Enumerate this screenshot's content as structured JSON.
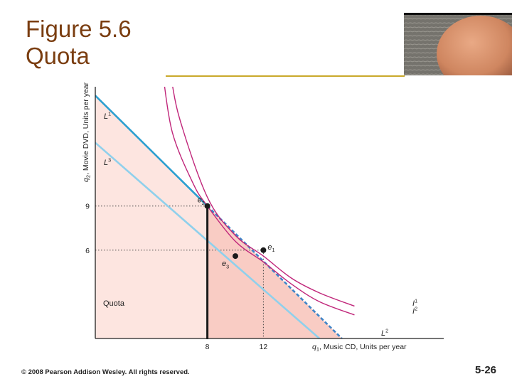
{
  "slide": {
    "title_line1": "Figure 5.6",
    "title_line2": "Quota",
    "footer": "© 2008 Pearson Addison Wesley. All rights reserved.",
    "page_number": "5-26"
  },
  "colors": {
    "title": "#7a3d10",
    "rule": "#c9a92b",
    "indifference": "#c0267a",
    "L1": "#2b9fd0",
    "L3": "#8fd0ec",
    "L2": "#3f85c8",
    "quota_fill": "#f9ccc4",
    "quota_line": "#1a1a1a"
  },
  "chart_data": {
    "type": "line",
    "title": "",
    "xlabel": "q1, Music CD, Units per year",
    "ylabel": "q2, Movie DVD, Units per year",
    "xlim": [
      0,
      20
    ],
    "ylim": [
      0,
      15.3
    ],
    "x_ticks": [
      {
        "value": 8,
        "label": "8"
      },
      {
        "value": 12,
        "label": "12"
      }
    ],
    "y_ticks": [
      {
        "value": 9,
        "label": "9"
      },
      {
        "value": 6,
        "label": "6"
      }
    ],
    "series": [
      {
        "name": "L1",
        "style": "solid",
        "points": [
          [
            0,
            16.5
          ],
          [
            8,
            9
          ]
        ]
      },
      {
        "name": "L2",
        "style": "dashed",
        "points": [
          [
            8,
            9
          ],
          [
            17.6,
            0
          ]
        ]
      },
      {
        "name": "L3",
        "style": "solid",
        "points": [
          [
            0,
            13.3
          ],
          [
            16,
            0
          ]
        ]
      },
      {
        "name": "I1",
        "style": "curve",
        "points": [
          [
            5.35,
            18.2
          ],
          [
            6,
            15
          ],
          [
            8,
            9.6
          ],
          [
            10,
            7
          ],
          [
            12,
            5.6
          ],
          [
            14,
            4.1
          ],
          [
            16,
            3.1
          ],
          [
            18.5,
            2.2
          ]
        ]
      },
      {
        "name": "I2",
        "style": "curve",
        "points": [
          [
            4.8,
            18.2
          ],
          [
            5.5,
            14
          ],
          [
            7,
            10.5
          ],
          [
            8,
            9
          ],
          [
            10,
            6.6
          ],
          [
            12,
            5.2
          ],
          [
            14,
            3.7
          ],
          [
            16,
            2.5
          ],
          [
            18.5,
            1.6
          ]
        ]
      }
    ],
    "points": [
      {
        "label": "e2",
        "x": 8,
        "y": 9
      },
      {
        "label": "e1",
        "x": 12,
        "y": 6
      },
      {
        "label": "e3",
        "x": 10,
        "y": 5.6
      }
    ],
    "region": {
      "label": "Quota",
      "x_max": 8
    },
    "line_labels": {
      "L1": "L1",
      "L2": "L2",
      "L3": "L3",
      "I1": "I1",
      "I2": "I2"
    }
  }
}
